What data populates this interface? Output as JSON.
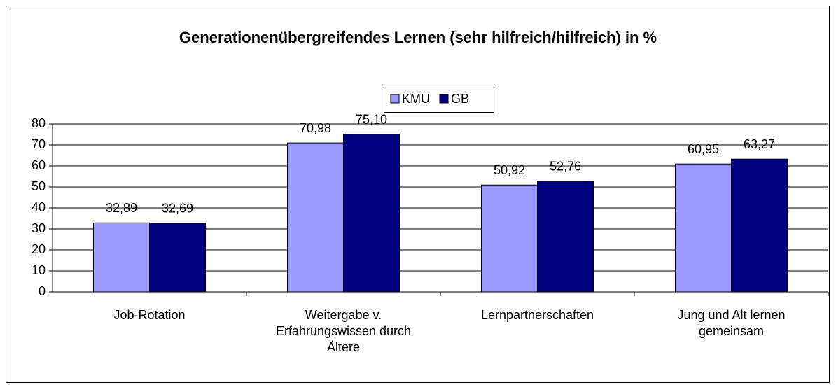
{
  "chart_data": {
    "type": "bar",
    "title": "Generationenübergreifendes Lernen (sehr hilfreich/hilfreich) in %",
    "categories": [
      "Job-Rotation",
      "Weitergabe v. Erfahrungswissen durch Ältere",
      "Lernpartnerschaften",
      "Jung und Alt lernen gemeinsam"
    ],
    "series": [
      {
        "name": "KMU",
        "color": "#9999ff",
        "values": [
          32.89,
          70.98,
          50.92,
          60.95
        ],
        "value_labels": [
          "32,89",
          "70,98",
          "50,92",
          "60,95"
        ]
      },
      {
        "name": "GB",
        "color": "#000080",
        "values": [
          32.69,
          75.1,
          52.76,
          63.27
        ],
        "value_labels": [
          "32,69",
          "75,10",
          "52,76",
          "63,27"
        ]
      }
    ],
    "ylim": [
      0,
      80
    ],
    "yticks": [
      0,
      10,
      20,
      30,
      40,
      50,
      60,
      70,
      80
    ],
    "grid": true,
    "legend": "top"
  }
}
